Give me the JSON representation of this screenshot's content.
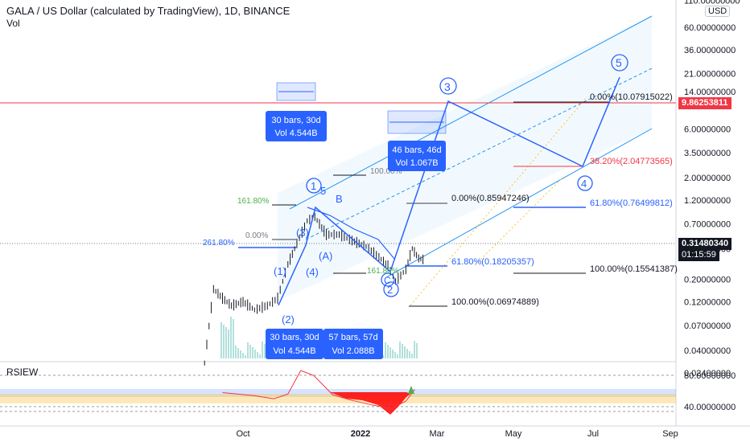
{
  "header": {
    "title": "GALA / US Dollar (calculated by TradingView), 1D, BINANCE",
    "volume_label": "Vol",
    "currency_button": "USD"
  },
  "indicator": {
    "name": "RSIEW",
    "levels": [
      "80.00000000",
      "40.00000000"
    ]
  },
  "price_axis": {
    "scale": "log",
    "ticks": [
      "110.00000000",
      "60.00000000",
      "36.00000000",
      "21.00000000",
      "14.00000000",
      "6.00000000",
      "3.50000000",
      "2.00000000",
      "1.20000000",
      "0.70000000",
      "0.40000000",
      "0.20000000",
      "0.12000000",
      "0.07000000",
      "0.04000000",
      "0.02400000"
    ]
  },
  "time_axis": {
    "labels": [
      "Oct",
      "2022",
      "Mar",
      "May",
      "Jul",
      "Sep"
    ]
  },
  "price_tags": {
    "red_line": "9.86253811",
    "last_price": "0.31480340",
    "countdown": "01:15:59"
  },
  "wave_labels": [
    "1",
    "5",
    "B",
    "3",
    "(1)",
    "(2)",
    "(3)",
    "(4)",
    "(A)",
    "C",
    "2",
    "3",
    "4",
    "5"
  ],
  "fib_labels": [
    "0.00%(10.07915022)",
    "38.20%(2.04773565)",
    "61.80%(0.76499812)",
    "100.00%(0.15541387)",
    "0.00%(0.85947246)",
    "61.80%(0.18205357)",
    "100.00%(0.06974889)",
    "100.00%",
    "0.00%",
    "161.80%",
    "261.80%",
    "161.80%"
  ],
  "range_boxes": [
    {
      "bars": "30 bars, 30d",
      "vol": "Vol 4.544B"
    },
    {
      "bars": "46 bars, 46d",
      "vol": "Vol 1.067B"
    },
    {
      "bars": "30 bars, 30d",
      "vol": "Vol 4.544B"
    },
    {
      "bars": "57 bars, 57d",
      "vol": "Vol 2.088B"
    }
  ],
  "colors": {
    "candle": "#131722",
    "wave": "#2962ff",
    "channel": "#2196f3",
    "red_line": "#f23645",
    "fib_green": "#4caf50",
    "rsi_line": "#f23645",
    "rsi_band": "#fbc02d"
  },
  "chart_data": {
    "type": "line",
    "title": "GALA / US Dollar (calculated by TradingView), 1D, BINANCE",
    "y_scale": "log",
    "ylim": [
      0.02,
      110
    ],
    "series": [
      {
        "name": "GALA / US Dollar",
        "x": [
          "2021-09-01",
          "2021-09-08",
          "2021-09-15",
          "2021-09-22",
          "2021-10-01",
          "2021-10-10",
          "2021-10-20",
          "2021-10-28",
          "2021-11-05",
          "2021-11-12",
          "2021-11-20",
          "2021-11-26",
          "2021-12-05",
          "2021-12-15",
          "2021-12-25",
          "2022-01-05",
          "2022-01-15",
          "2022-01-22",
          "2022-01-28",
          "2022-02-05",
          "2022-02-10",
          "2022-02-15",
          "2022-02-20"
        ],
        "values": [
          0.03,
          0.16,
          0.13,
          0.11,
          0.12,
          0.1,
          0.11,
          0.13,
          0.28,
          0.45,
          0.75,
          0.82,
          0.55,
          0.55,
          0.48,
          0.42,
          0.33,
          0.27,
          0.19,
          0.25,
          0.4,
          0.32,
          0.31
        ]
      }
    ],
    "projection": {
      "wave_points": [
        {
          "label": "3",
          "x": "2022-03-05",
          "y": 12.0
        },
        {
          "label": "4",
          "x": "2022-06-20",
          "y": 2.0
        },
        {
          "label": "5",
          "x": "2022-07-20",
          "y": 25.0
        }
      ]
    },
    "horizontal_line": 9.86253811,
    "last_price": 0.3148034,
    "rsi": {
      "levels": [
        80,
        40
      ],
      "x": [
        "2021-09-15",
        "2021-10-10",
        "2021-10-25",
        "2021-11-05",
        "2021-11-15",
        "2021-11-25",
        "2021-12-10",
        "2021-12-25",
        "2022-01-10",
        "2022-01-25",
        "2022-02-05",
        "2022-02-12"
      ],
      "values": [
        58,
        54,
        50,
        56,
        86,
        80,
        55,
        48,
        42,
        38,
        47,
        62
      ]
    }
  }
}
